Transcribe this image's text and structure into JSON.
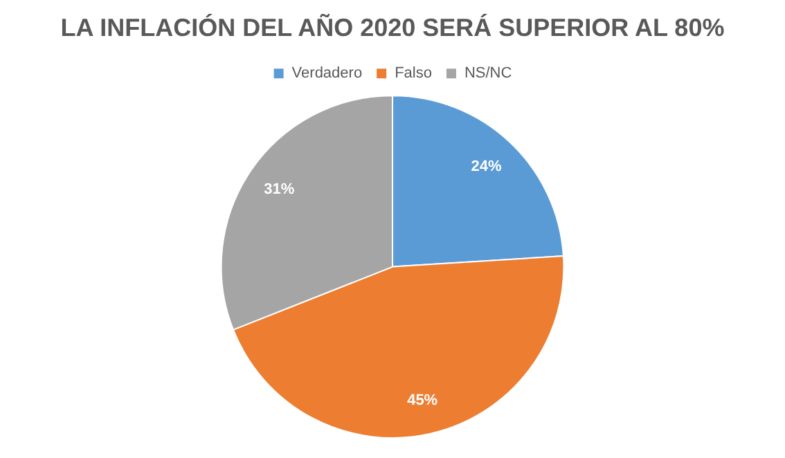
{
  "chart_data": {
    "type": "pie",
    "title": "LA INFLACIÓN DEL AÑO 2020 SERÁ SUPERIOR AL 80%",
    "categories": [
      "Verdadero",
      "Falso",
      "NS/NC"
    ],
    "values": [
      24,
      45,
      31
    ],
    "colors": [
      "#5b9bd5",
      "#ed7d31",
      "#a5a5a5"
    ],
    "value_labels": [
      "24%",
      "45%",
      "31%"
    ],
    "legend": "top"
  }
}
